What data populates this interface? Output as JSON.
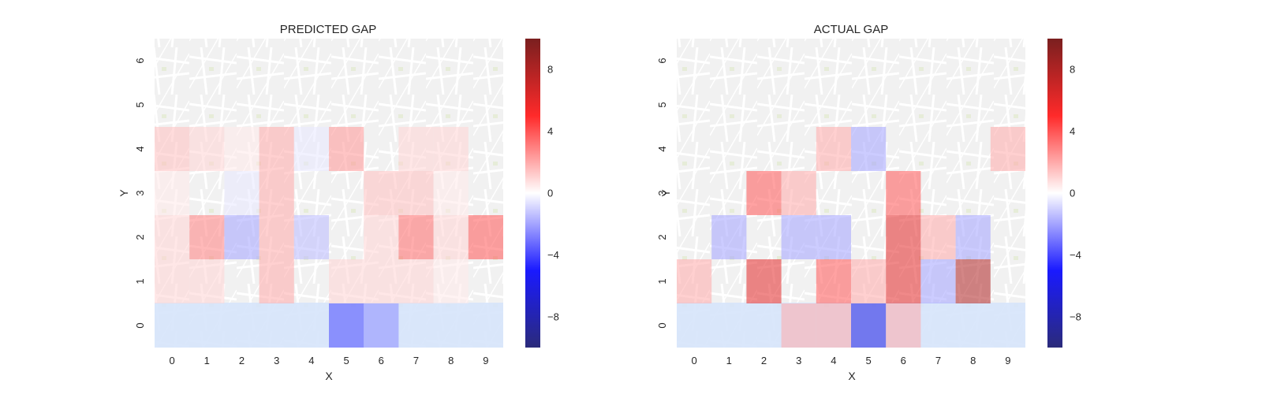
{
  "chart_data": [
    {
      "type": "heatmap",
      "title": "PREDICTED GAP",
      "xlabel": "X",
      "ylabel": "Y",
      "x_categories": [
        "0",
        "1",
        "2",
        "3",
        "4",
        "5",
        "6",
        "7",
        "8",
        "9"
      ],
      "y_categories": [
        "0",
        "1",
        "2",
        "3",
        "4",
        "5",
        "6"
      ],
      "colorbar": {
        "ticks": [
          -8,
          -4,
          0,
          4,
          8
        ],
        "tick_labels": [
          "−8",
          "−4",
          "0",
          "4",
          "8"
        ],
        "range": [
          -10,
          10
        ]
      },
      "rows": [
        {
          "y": "6",
          "values": [
            0,
            0,
            0,
            0,
            0,
            0,
            0,
            0,
            0,
            0
          ]
        },
        {
          "y": "5",
          "values": [
            0,
            0,
            0,
            0,
            0,
            0,
            0,
            0,
            0,
            0
          ]
        },
        {
          "y": "4",
          "values": [
            1.5,
            1,
            0.5,
            2,
            -0.5,
            2.5,
            0,
            1,
            1,
            0
          ]
        },
        {
          "y": "3",
          "values": [
            0.5,
            0,
            -0.5,
            2,
            0,
            0,
            1.5,
            1.5,
            0.5,
            0
          ]
        },
        {
          "y": "2",
          "values": [
            1,
            3,
            -2,
            2,
            -1.5,
            0,
            1,
            3.5,
            1,
            4
          ]
        },
        {
          "y": "1",
          "values": [
            1,
            1,
            0,
            2,
            0,
            1,
            1,
            1,
            0.5,
            0
          ]
        },
        {
          "y": "0",
          "values": [
            0,
            0,
            0,
            0,
            0,
            -4,
            -2.5,
            0,
            0,
            0
          ]
        }
      ]
    },
    {
      "type": "heatmap",
      "title": "ACTUAL GAP",
      "xlabel": "X",
      "ylabel": "Y",
      "x_categories": [
        "0",
        "1",
        "2",
        "3",
        "4",
        "5",
        "6",
        "7",
        "8",
        "9"
      ],
      "y_categories": [
        "0",
        "1",
        "2",
        "3",
        "4",
        "5",
        "6"
      ],
      "colorbar": {
        "ticks": [
          -8,
          -4,
          0,
          4,
          8
        ],
        "tick_labels": [
          "−8",
          "−4",
          "0",
          "4",
          "8"
        ],
        "range": [
          -10,
          10
        ]
      },
      "rows": [
        {
          "y": "6",
          "values": [
            0,
            0,
            0,
            0,
            0,
            0,
            0,
            0,
            0,
            0
          ]
        },
        {
          "y": "5",
          "values": [
            0,
            0,
            0,
            0,
            0,
            0,
            0,
            0,
            0,
            0
          ]
        },
        {
          "y": "4",
          "values": [
            0,
            0,
            0,
            0,
            2,
            -2,
            0,
            0,
            0,
            2
          ]
        },
        {
          "y": "3",
          "values": [
            0,
            0,
            4,
            2,
            0,
            0,
            4,
            0,
            0,
            0
          ]
        },
        {
          "y": "2",
          "values": [
            0,
            -2,
            0,
            -2,
            -2,
            0,
            6,
            2,
            -2,
            0
          ]
        },
        {
          "y": "1",
          "values": [
            2,
            0,
            6,
            0,
            4,
            2,
            6,
            -2,
            8,
            0
          ]
        },
        {
          "y": "0",
          "values": [
            0,
            0,
            0,
            2,
            2,
            -6,
            2,
            0,
            0,
            0
          ]
        }
      ]
    }
  ]
}
